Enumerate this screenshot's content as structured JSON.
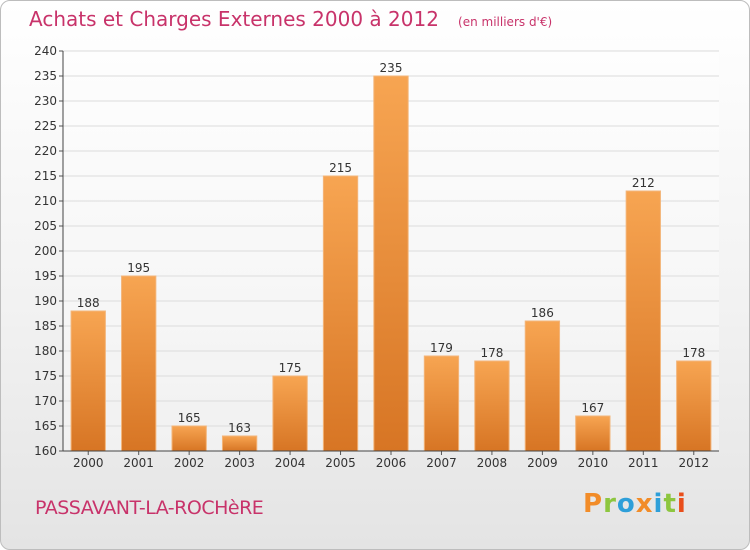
{
  "title": "Achats et Charges Externes 2000 à 2012",
  "unit": "(en milliers d'€)",
  "location": "PASSAVANT-LA-ROCHèRE",
  "brand": "Proxiti",
  "colors": {
    "accent": "#c8336a",
    "bar_light": "#f7a552",
    "bar_dark": "#d77524",
    "brand_letters": [
      "#f28c28",
      "#8dc63f",
      "#2e9fd9",
      "#f28c28",
      "#2e9fd9",
      "#8dc63f",
      "#e94e1b"
    ]
  },
  "chart_data": {
    "type": "bar",
    "categories": [
      "2000",
      "2001",
      "2002",
      "2003",
      "2004",
      "2005",
      "2006",
      "2007",
      "2008",
      "2009",
      "2010",
      "2011",
      "2012"
    ],
    "values": [
      188,
      195,
      165,
      163,
      175,
      215,
      235,
      179,
      178,
      186,
      167,
      212,
      178
    ],
    "ylim": [
      160,
      240
    ],
    "yticks": [
      160,
      165,
      170,
      175,
      180,
      185,
      190,
      195,
      200,
      205,
      210,
      215,
      220,
      225,
      230,
      235,
      240
    ],
    "grid": true,
    "legend": "none"
  }
}
